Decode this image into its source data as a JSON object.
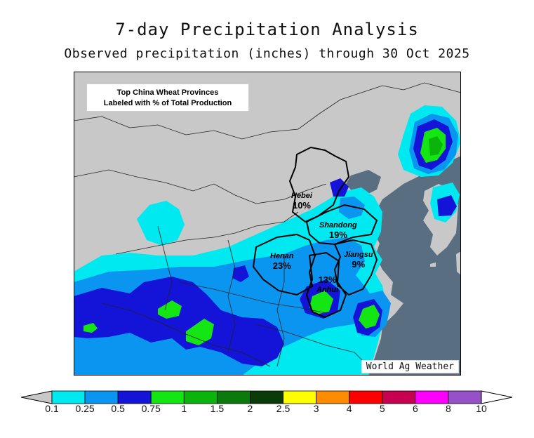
{
  "title": "7-day Precipitation Analysis",
  "subtitle": "Observed precipitation (inches) through 30 Oct 2025",
  "callout": {
    "line1": "Top China Wheat Provinces",
    "line2": "Labeled with % of Total Production"
  },
  "credit": "World Ag Weather",
  "provinces": [
    {
      "name": "Hebei",
      "pct": "10%"
    },
    {
      "name": "Shandong",
      "pct": "19%"
    },
    {
      "name": "Henan",
      "pct": "23%"
    },
    {
      "name": "Jiangsu",
      "pct": "9%"
    },
    {
      "name": "Anhui",
      "pct": "13%"
    }
  ],
  "legend": {
    "unit": "inches",
    "ticks": [
      "0.1",
      "0.25",
      "0.5",
      "0.75",
      "1",
      "1.5",
      "2",
      "2.5",
      "3",
      "4",
      "5",
      "6",
      "8",
      "10"
    ],
    "colors": [
      "#00e8f0",
      "#0a96f0",
      "#1414d8",
      "#14e614",
      "#0ab40a",
      "#0a7a0a",
      "#0a3c0a",
      "#ffff00",
      "#ff8c00",
      "#ff0000",
      "#c80050",
      "#ff00ff",
      "#9650c8"
    ]
  },
  "map_colors": {
    "land": "#c8c8c8",
    "water": "#5a6e82",
    "border": "#000000"
  }
}
